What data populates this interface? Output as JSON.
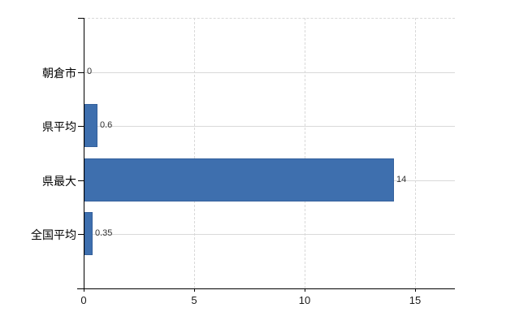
{
  "chart_data": {
    "type": "bar",
    "orientation": "horizontal",
    "title": "",
    "xlabel": "",
    "ylabel": "",
    "categories": [
      "朝倉市",
      "県平均",
      "県最大",
      "全国平均"
    ],
    "values": [
      0,
      0.6,
      14,
      0.35
    ],
    "value_labels": [
      "0",
      "0.6",
      "14",
      "0.35"
    ],
    "x_ticks": [
      0,
      5,
      10,
      15
    ],
    "x_tick_labels": [
      "0",
      "5",
      "10",
      "15"
    ],
    "xlim": [
      0,
      16.8
    ],
    "grid": true,
    "legend_position": "none",
    "colors": {
      "bar": "#3e6fae",
      "bar_edge": "#35619c",
      "gridline": "#d9d9d9",
      "axis": "#000000",
      "category_label": "#000000",
      "value_label": "#333333",
      "tick_label": "#1a1a1a",
      "background": "#ffffff"
    }
  }
}
